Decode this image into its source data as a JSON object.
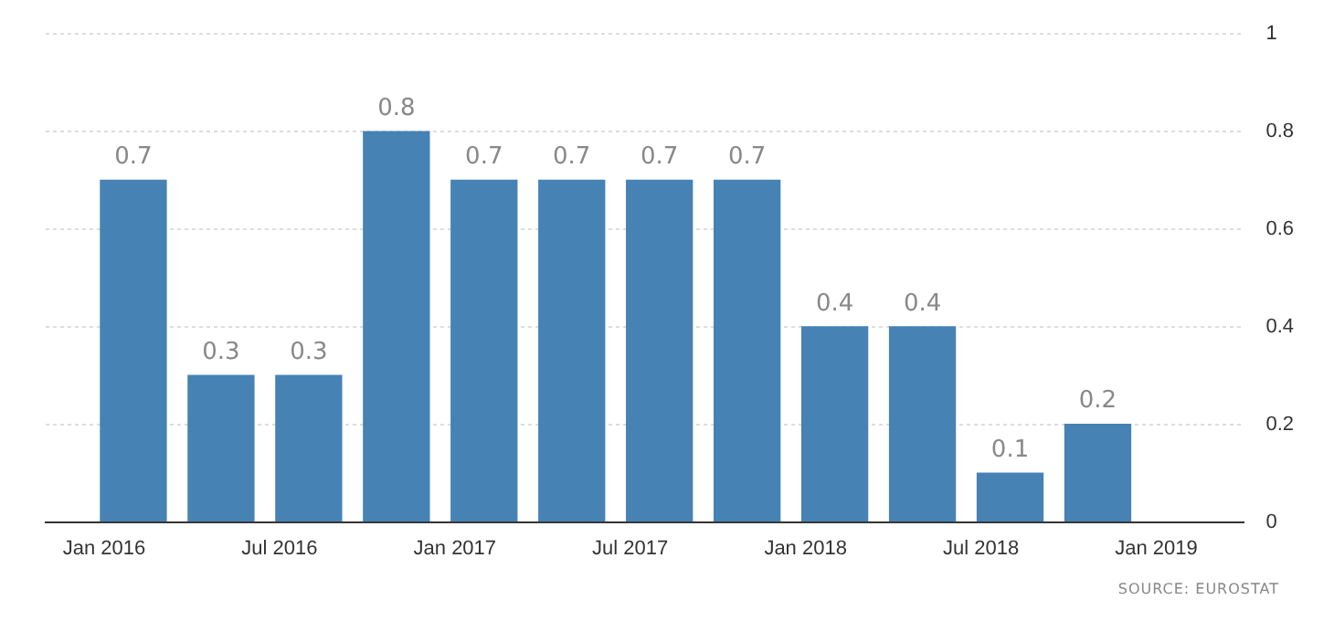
{
  "chart_data": {
    "type": "bar",
    "x": [
      "2016-02",
      "2016-05",
      "2016-08",
      "2016-11",
      "2017-02",
      "2017-05",
      "2017-08",
      "2017-11",
      "2018-02",
      "2018-05",
      "2018-08",
      "2018-11"
    ],
    "values": [
      0.7,
      0.3,
      0.3,
      0.8,
      0.7,
      0.7,
      0.7,
      0.7,
      0.4,
      0.4,
      0.1,
      0.2
    ],
    "color": "#4682b4",
    "xlim": [
      "2015-11",
      "2019-04"
    ],
    "xticks": [
      {
        "value": "2016-01",
        "label": "Jan 2016"
      },
      {
        "value": "2016-07",
        "label": "Jul 2016"
      },
      {
        "value": "2017-01",
        "label": "Jan 2017"
      },
      {
        "value": "2017-07",
        "label": "Jul 2017"
      },
      {
        "value": "2018-01",
        "label": "Jan 2018"
      },
      {
        "value": "2018-07",
        "label": "Jul 2018"
      },
      {
        "value": "2019-01",
        "label": "Jan 2019"
      }
    ],
    "ylim": [
      0,
      1
    ],
    "yticks": [
      0,
      0.2,
      0.4,
      0.6,
      0.8,
      1
    ],
    "grid": "y",
    "data_labels": true,
    "annotations": [
      "SOURCE: EUROSTAT"
    ]
  }
}
